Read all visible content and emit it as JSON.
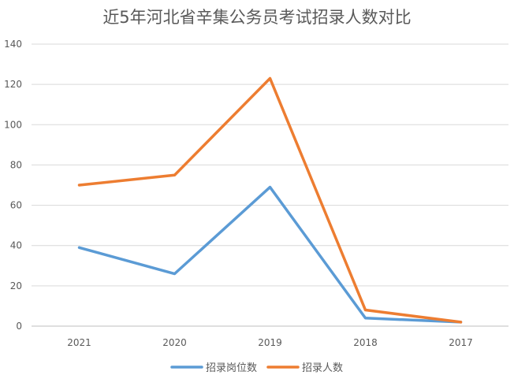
{
  "chart_data": {
    "type": "line",
    "title": "近5年河北省辛集公务员考试招录人数对比",
    "xlabel": "",
    "ylabel": "",
    "categories": [
      "2021",
      "2020",
      "2019",
      "2018",
      "2017"
    ],
    "ylim": [
      0,
      140
    ],
    "yticks": [
      0,
      20,
      40,
      60,
      80,
      100,
      120,
      140
    ],
    "grid": true,
    "legend_position": "bottom",
    "series": [
      {
        "name": "招录岗位数",
        "values": [
          39,
          26,
          69,
          4,
          2
        ],
        "color": "#5B9BD5"
      },
      {
        "name": "招录人数",
        "values": [
          70,
          75,
          123,
          8,
          2
        ],
        "color": "#ED7D31"
      }
    ]
  }
}
